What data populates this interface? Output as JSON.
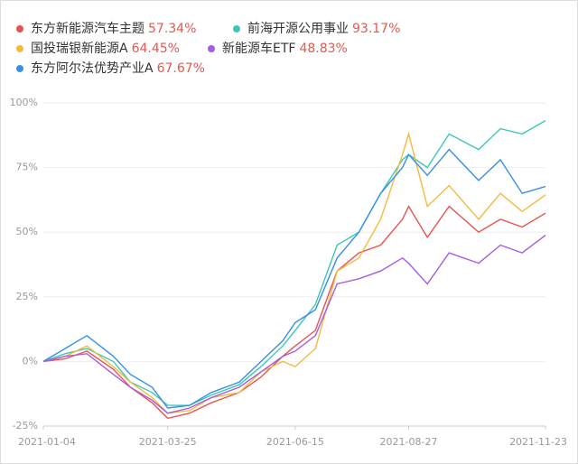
{
  "chart_data": {
    "type": "line",
    "x": [
      "2021-01-04",
      "2021-01-18",
      "2021-02-01",
      "2021-02-18",
      "2021-03-01",
      "2021-03-15",
      "2021-03-25",
      "2021-04-08",
      "2021-04-22",
      "2021-05-10",
      "2021-05-24",
      "2021-06-07",
      "2021-06-15",
      "2021-06-28",
      "2021-07-12",
      "2021-07-26",
      "2021-08-09",
      "2021-08-23",
      "2021-08-27",
      "2021-09-08",
      "2021-09-22",
      "2021-10-11",
      "2021-10-25",
      "2021-11-08",
      "2021-11-23"
    ],
    "series": [
      {
        "name": "东方新能源汽车主题",
        "value_label": "57.34%",
        "color": "#e8534f",
        "values": [
          0,
          1,
          4,
          -3,
          -10,
          -16,
          -22,
          -20,
          -16,
          -12,
          -6,
          2,
          6,
          12,
          35,
          42,
          45,
          55,
          60,
          48,
          60,
          50,
          55,
          52,
          57.34
        ]
      },
      {
        "name": "前海开源公用事业",
        "value_label": "93.17%",
        "color": "#3cc8b8",
        "values": [
          0,
          3,
          5,
          0,
          -8,
          -12,
          -17,
          -17,
          -13,
          -9,
          -2,
          6,
          12,
          22,
          45,
          50,
          65,
          78,
          80,
          75,
          88,
          82,
          90,
          88,
          93.17
        ]
      },
      {
        "name": "国投瑞银新能源A",
        "value_label": "64.45%",
        "color": "#f4b93e",
        "values": [
          0,
          2,
          6,
          -2,
          -8,
          -14,
          -20,
          -19,
          -14,
          -12,
          -4,
          0,
          -2,
          5,
          35,
          40,
          55,
          80,
          88,
          60,
          68,
          55,
          65,
          58,
          64.45
        ]
      },
      {
        "name": "新能源车ETF",
        "value_label": "48.83%",
        "color": "#a45de0",
        "values": [
          0,
          2,
          3,
          -5,
          -10,
          -15,
          -20,
          -18,
          -14,
          -10,
          -4,
          2,
          4,
          10,
          30,
          32,
          35,
          40,
          38,
          30,
          42,
          38,
          45,
          42,
          48.83
        ]
      },
      {
        "name": "东方阿尔法优势产业A",
        "value_label": "67.67%",
        "color": "#3a8ee6",
        "values": [
          0,
          5,
          10,
          2,
          -5,
          -10,
          -18,
          -17,
          -12,
          -8,
          0,
          8,
          15,
          20,
          40,
          50,
          65,
          75,
          80,
          72,
          82,
          70,
          78,
          65,
          67.67
        ]
      }
    ],
    "xlim": [
      "2021-01-04",
      "2021-11-23"
    ],
    "xticks": [
      "2021-01-04",
      "2021-03-25",
      "2021-06-15",
      "2021-08-27",
      "2021-11-23"
    ],
    "ylim": [
      -25,
      100
    ],
    "yticks": [
      {
        "value": -25,
        "label": "-25%"
      },
      {
        "value": 0,
        "label": "0%"
      },
      {
        "value": 25,
        "label": "25%"
      },
      {
        "value": 50,
        "label": "50%"
      },
      {
        "value": 75,
        "label": "75%"
      },
      {
        "value": 100,
        "label": "100%"
      }
    ],
    "grid": true
  }
}
